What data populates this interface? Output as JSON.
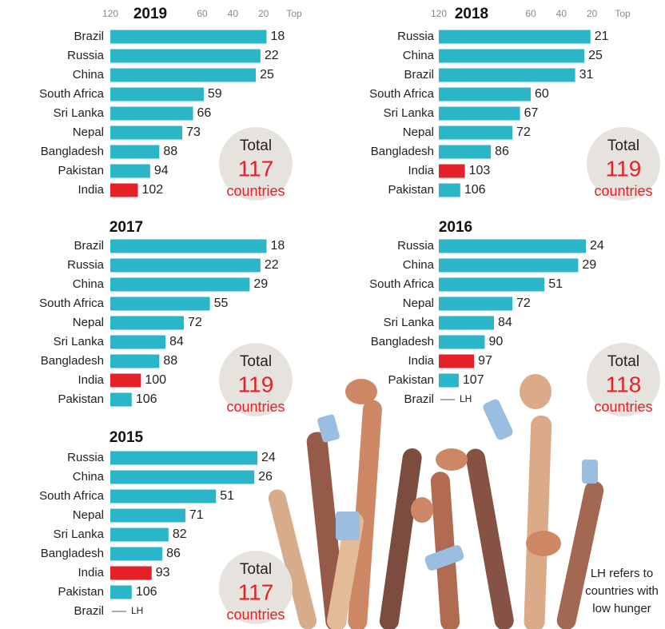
{
  "chart_data": [
    {
      "type": "bar",
      "title": "2019",
      "categories": [
        "Brazil",
        "Russia",
        "China",
        "South Africa",
        "Sri Lanka",
        "Nepal",
        "Bangladesh",
        "Pakistan",
        "India"
      ],
      "values": [
        18,
        22,
        25,
        59,
        66,
        73,
        88,
        94,
        102
      ],
      "colors": [
        "#2bb5c9",
        "#2bb5c9",
        "#2bb5c9",
        "#2bb5c9",
        "#2bb5c9",
        "#2bb5c9",
        "#2bb5c9",
        "#2bb5c9",
        "#e42127"
      ],
      "xlim": [
        120,
        0
      ],
      "xticks": [
        120,
        60,
        40,
        20,
        {
          "value": 0,
          "label": "Top"
        }
      ],
      "total_label": "Total",
      "total": 117,
      "total_unit": "countries"
    },
    {
      "type": "bar",
      "title": "2018",
      "categories": [
        "Russia",
        "China",
        "Brazil",
        "South Africa",
        "Sri Lanka",
        "Nepal",
        "Bangladesh",
        "India",
        "Pakistan"
      ],
      "values": [
        21,
        25,
        31,
        60,
        67,
        72,
        86,
        103,
        106
      ],
      "colors": [
        "#2bb5c9",
        "#2bb5c9",
        "#2bb5c9",
        "#2bb5c9",
        "#2bb5c9",
        "#2bb5c9",
        "#2bb5c9",
        "#e42127",
        "#2bb5c9"
      ],
      "xlim": [
        120,
        0
      ],
      "xticks": [
        120,
        60,
        40,
        20,
        {
          "value": 0,
          "label": "Top"
        }
      ],
      "total_label": "Total",
      "total": 119,
      "total_unit": "countries"
    },
    {
      "type": "bar",
      "title": "2017",
      "categories": [
        "Brazil",
        "Russia",
        "China",
        "South Africa",
        "Nepal",
        "Sri Lanka",
        "Bangladesh",
        "India",
        "Pakistan"
      ],
      "values": [
        18,
        22,
        29,
        55,
        72,
        84,
        88,
        100,
        106
      ],
      "colors": [
        "#2bb5c9",
        "#2bb5c9",
        "#2bb5c9",
        "#2bb5c9",
        "#2bb5c9",
        "#2bb5c9",
        "#2bb5c9",
        "#e42127",
        "#2bb5c9"
      ],
      "xlim": [
        120,
        0
      ],
      "total_label": "Total",
      "total": 119,
      "total_unit": "countries"
    },
    {
      "type": "bar",
      "title": "2016",
      "categories": [
        "Russia",
        "China",
        "South Africa",
        "Nepal",
        "Sri Lanka",
        "Bangladesh",
        "India",
        "Pakistan",
        "Brazil"
      ],
      "values": [
        24,
        29,
        51,
        72,
        84,
        90,
        97,
        107,
        null
      ],
      "value_labels": [
        null,
        null,
        null,
        null,
        null,
        null,
        null,
        null,
        "LH"
      ],
      "colors": [
        "#2bb5c9",
        "#2bb5c9",
        "#2bb5c9",
        "#2bb5c9",
        "#2bb5c9",
        "#2bb5c9",
        "#e42127",
        "#2bb5c9",
        "#2bb5c9"
      ],
      "xlim": [
        120,
        0
      ],
      "total_label": "Total",
      "total": 118,
      "total_unit": "countries"
    },
    {
      "type": "bar",
      "title": "2015",
      "categories": [
        "Russia",
        "China",
        "South Africa",
        "Nepal",
        "Sri Lanka",
        "Bangladesh",
        "India",
        "Pakistan",
        "Brazil"
      ],
      "values": [
        24,
        26,
        51,
        71,
        82,
        86,
        93,
        106,
        null
      ],
      "value_labels": [
        null,
        null,
        null,
        null,
        null,
        null,
        null,
        null,
        "LH"
      ],
      "colors": [
        "#2bb5c9",
        "#2bb5c9",
        "#2bb5c9",
        "#2bb5c9",
        "#2bb5c9",
        "#2bb5c9",
        "#e42127",
        "#2bb5c9",
        "#2bb5c9"
      ],
      "xlim": [
        120,
        0
      ],
      "total_label": "Total",
      "total": 117,
      "total_unit": "countries"
    }
  ],
  "note": [
    "LH refers to",
    "countries with",
    "low hunger"
  ]
}
